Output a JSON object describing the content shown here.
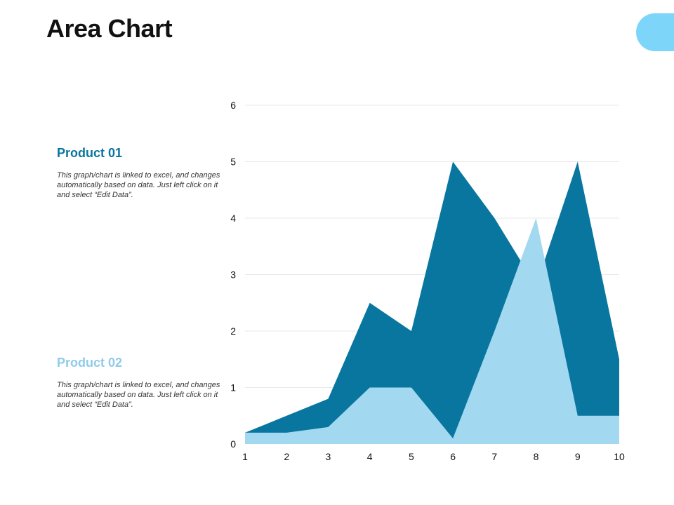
{
  "page": {
    "title": "Area Chart"
  },
  "colors": {
    "product_01": "#08769e",
    "product_02": "#a3d8f1",
    "accent": "#7dd6fa",
    "grid": "#e8e8e8"
  },
  "legend": [
    {
      "title": "Product 01",
      "description": "This graph/chart is linked to excel, and changes automatically based on data. Just left click on it and select “Edit Data”."
    },
    {
      "title": "Product 02",
      "description": "This graph/chart is linked to excel, and changes automatically based on data. Just left click on it and select “Edit Data”."
    }
  ],
  "chart_data": {
    "type": "area",
    "title": "Area Chart",
    "xlabel": "",
    "ylabel": "",
    "x": [
      1,
      2,
      3,
      4,
      5,
      6,
      7,
      8,
      9,
      10
    ],
    "ylim": [
      0,
      6
    ],
    "yticks": [
      0,
      1,
      2,
      3,
      4,
      5,
      6
    ],
    "grid": true,
    "series": [
      {
        "name": "Product 01",
        "values": [
          0.2,
          0.5,
          0.8,
          2.5,
          2.0,
          5.0,
          4.0,
          2.8,
          5.0,
          1.5
        ]
      },
      {
        "name": "Product 02",
        "values": [
          0.2,
          0.2,
          0.3,
          1.0,
          1.0,
          0.1,
          2.0,
          4.0,
          0.5,
          0.5
        ]
      }
    ]
  }
}
